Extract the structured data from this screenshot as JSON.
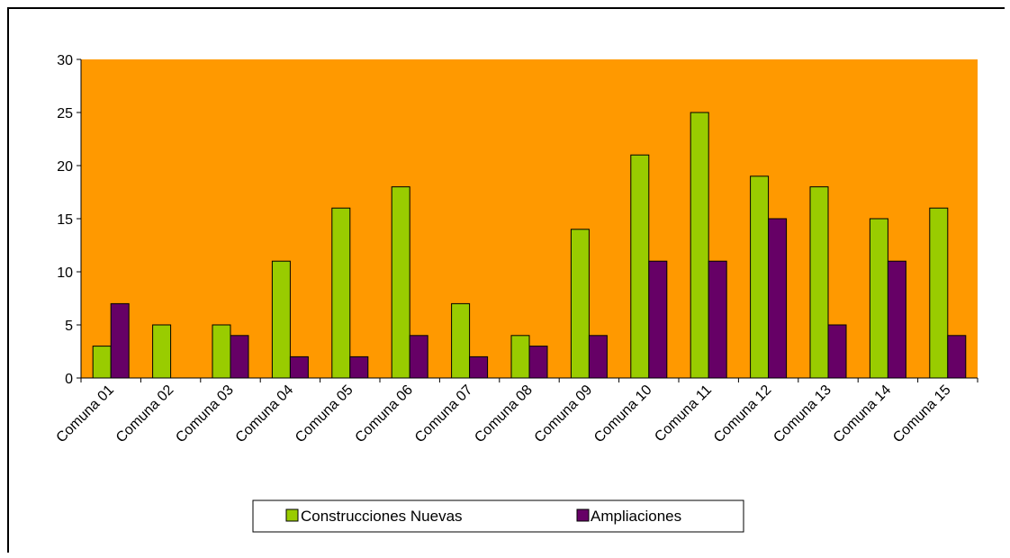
{
  "chart_data": {
    "type": "bar",
    "title": "",
    "xlabel": "",
    "ylabel": "",
    "ylim": [
      0,
      30
    ],
    "yticks": [
      0,
      5,
      10,
      15,
      20,
      25,
      30
    ],
    "grid": false,
    "legend_position": "bottom",
    "plot_background": "#FF9900",
    "categories": [
      "Comuna 01",
      "Comuna 02",
      "Comuna 03",
      "Comuna 04",
      "Comuna 05",
      "Comuna 06",
      "Comuna 07",
      "Comuna 08",
      "Comuna 09",
      "Comuna 10",
      "Comuna 11",
      "Comuna 12",
      "Comuna 13",
      "Comuna 14",
      "Comuna 15"
    ],
    "series": [
      {
        "name": "Construcciones Nuevas",
        "color": "#99CC00",
        "values": [
          3,
          5,
          5,
          11,
          16,
          18,
          7,
          4,
          14,
          21,
          25,
          19,
          18,
          15,
          16
        ]
      },
      {
        "name": "Ampliaciones",
        "color": "#660066",
        "values": [
          7,
          0,
          4,
          2,
          2,
          4,
          2,
          3,
          4,
          11,
          11,
          15,
          5,
          11,
          4
        ]
      }
    ]
  }
}
